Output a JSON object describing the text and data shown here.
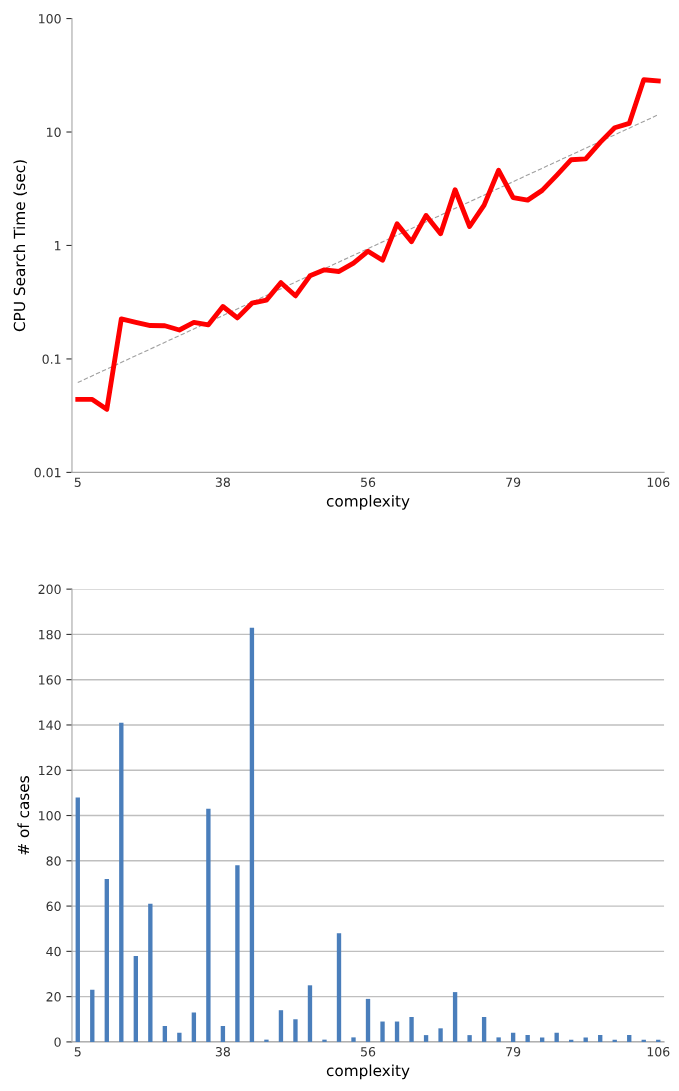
{
  "chart_data": [
    {
      "type": "line",
      "xlabel": "complexity",
      "ylabel": "CPU Search Time (sec)",
      "log": "y",
      "ylim": [
        0.01,
        100
      ],
      "yticks": [
        0.01,
        0.1,
        1,
        10,
        100
      ],
      "grid": false,
      "legend": false,
      "marker": "none",
      "categories": [
        "5",
        null,
        null,
        null,
        null,
        null,
        null,
        null,
        null,
        null,
        "38",
        null,
        null,
        null,
        null,
        null,
        null,
        null,
        null,
        null,
        "56",
        null,
        null,
        null,
        null,
        null,
        null,
        null,
        null,
        null,
        "79",
        null,
        null,
        null,
        null,
        null,
        null,
        null,
        null,
        null,
        "106"
      ],
      "series": [
        {
          "color": "#ff0000",
          "line_style": "solid",
          "values": [
            0.044,
            0.044,
            0.036,
            0.225,
            0.21,
            0.197,
            0.196,
            0.18,
            0.21,
            0.2,
            0.29,
            0.23,
            0.31,
            0.33,
            0.47,
            0.36,
            0.54,
            0.61,
            0.59,
            0.7,
            0.89,
            0.74,
            1.55,
            1.08,
            1.84,
            1.27,
            3.1,
            1.47,
            2.27,
            4.6,
            2.64,
            2.51,
            3.06,
            4.15,
            5.7,
            5.8,
            8.1,
            10.9,
            11.9,
            28.9,
            28.2
          ]
        },
        {
          "color": "#a0a0a0",
          "line_style": "dashed",
          "values": [
            0.062,
            null,
            null,
            null,
            null,
            null,
            null,
            null,
            null,
            null,
            null,
            null,
            null,
            null,
            null,
            null,
            null,
            null,
            null,
            null,
            null,
            null,
            null,
            null,
            null,
            null,
            null,
            null,
            null,
            null,
            null,
            null,
            null,
            null,
            null,
            null,
            null,
            null,
            null,
            null,
            14.2
          ]
        }
      ]
    },
    {
      "type": "bar",
      "xlabel": "complexity",
      "ylabel": "# of cases",
      "ylim": [
        0,
        200
      ],
      "yticks": [
        0,
        20,
        40,
        60,
        80,
        100,
        120,
        140,
        160,
        180,
        200
      ],
      "grid": "y",
      "legend": false,
      "categories": [
        "5",
        null,
        null,
        null,
        null,
        null,
        null,
        null,
        null,
        null,
        "38",
        null,
        null,
        null,
        null,
        null,
        null,
        null,
        null,
        null,
        "56",
        null,
        null,
        null,
        null,
        null,
        null,
        null,
        null,
        null,
        "79",
        null,
        null,
        null,
        null,
        null,
        null,
        null,
        null,
        null,
        "106"
      ],
      "series": [
        {
          "color": "#4a7ebb",
          "values": [
            108,
            23,
            72,
            141,
            38,
            61,
            7,
            4,
            13,
            103,
            7,
            78,
            183,
            1,
            14,
            10,
            25,
            1,
            48,
            2,
            19,
            9,
            9,
            11,
            3,
            6,
            22,
            3,
            11,
            2,
            4,
            3,
            2,
            4,
            1,
            2,
            3,
            1,
            3,
            1,
            1
          ]
        }
      ]
    }
  ]
}
